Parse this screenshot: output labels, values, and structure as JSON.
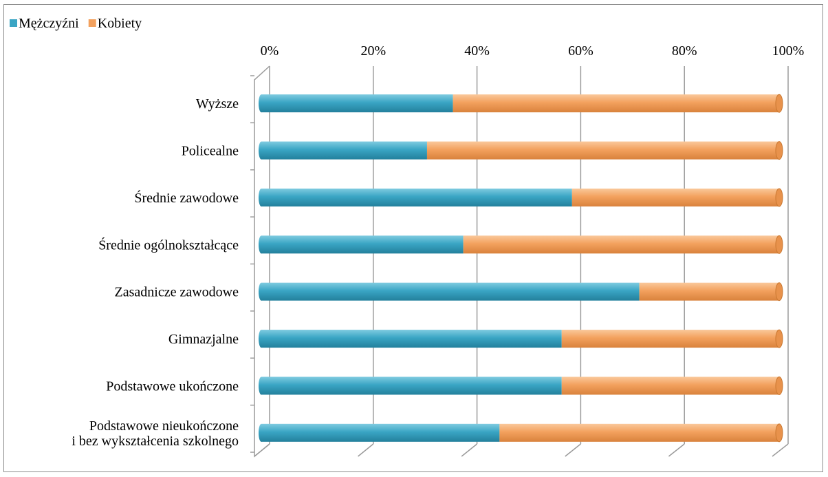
{
  "chart_data": {
    "type": "bar",
    "orientation": "horizontal",
    "stacked": "percent",
    "categories": [
      [
        "Wyższe"
      ],
      [
        "Policealne"
      ],
      [
        "Średnie zawodowe"
      ],
      [
        "Średnie ogólnokształcące"
      ],
      [
        "Zasadnicze zawodowe"
      ],
      [
        "Gimnazjalne"
      ],
      [
        "Podstawowe ukończone"
      ],
      [
        "Podstawowe nieukończone",
        "i bez wykształcenia szkolnego"
      ]
    ],
    "series": [
      {
        "name": "Mężczyźni",
        "color": "#3aa5c4",
        "values": [
          37,
          32,
          60,
          39,
          73,
          58,
          58,
          46
        ]
      },
      {
        "name": "Kobiety",
        "color": "#f3a15e",
        "values": [
          63,
          68,
          40,
          61,
          27,
          42,
          42,
          54
        ]
      }
    ],
    "x_ticks": [
      "0%",
      "20%",
      "40%",
      "60%",
      "80%",
      "100%"
    ],
    "xlim": [
      0,
      100
    ],
    "grid": true,
    "legend_position": "top-left",
    "three_d": true
  }
}
